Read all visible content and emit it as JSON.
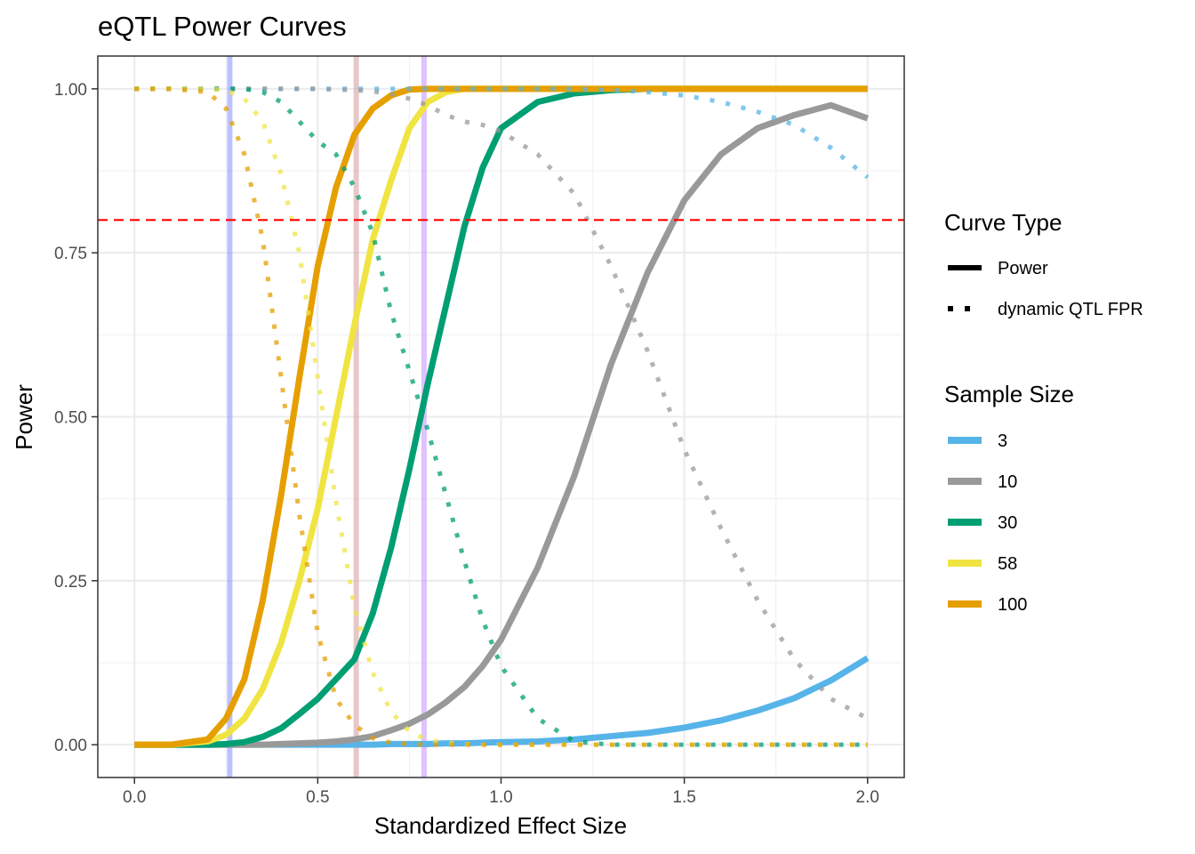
{
  "chart_data": {
    "type": "line",
    "title": "eQTL Power Curves",
    "xlabel": "Standardized Effect Size",
    "ylabel": "Power",
    "xlim": [
      -0.1,
      2.1
    ],
    "ylim": [
      -0.05,
      1.05
    ],
    "x_ticks": [
      0.0,
      0.5,
      1.0,
      1.5,
      2.0
    ],
    "x_tick_labels": [
      "0.0",
      "0.5",
      "1.0",
      "1.5",
      "2.0"
    ],
    "y_ticks": [
      0.0,
      0.25,
      0.5,
      0.75,
      1.0
    ],
    "y_tick_labels": [
      "0.00",
      "0.25",
      "0.50",
      "0.75",
      "1.00"
    ],
    "grid": true,
    "legend_position": "right",
    "x": [
      0.0,
      0.1,
      0.2,
      0.25,
      0.3,
      0.35,
      0.4,
      0.45,
      0.5,
      0.55,
      0.6,
      0.65,
      0.7,
      0.75,
      0.8,
      0.85,
      0.9,
      0.95,
      1.0,
      1.1,
      1.2,
      1.3,
      1.4,
      1.5,
      1.6,
      1.7,
      1.8,
      1.9,
      2.0
    ],
    "legends": [
      {
        "title": "Curve Type",
        "entries": [
          {
            "label": "Power",
            "linetype": "solid"
          },
          {
            "label": "dynamic QTL FPR",
            "linetype": "dotted"
          }
        ]
      },
      {
        "title": "Sample Size",
        "entries": [
          {
            "label": "3",
            "color": "#56B4E9"
          },
          {
            "label": "10",
            "color": "#999999"
          },
          {
            "label": "30",
            "color": "#009E73"
          },
          {
            "label": "58",
            "color": "#F0E442"
          },
          {
            "label": "100",
            "color": "#E69F00"
          }
        ]
      }
    ],
    "series": [
      {
        "name": "3",
        "curve": "Power",
        "color": "#56B4E9",
        "values": [
          0.0,
          0.0,
          0.0,
          0.0,
          0.0,
          0.0,
          0.0,
          0.0,
          0.0,
          0.0,
          0.0,
          0.0,
          0.001,
          0.001,
          0.001,
          0.002,
          0.002,
          0.003,
          0.004,
          0.005,
          0.008,
          0.013,
          0.018,
          0.026,
          0.037,
          0.052,
          0.071,
          0.098,
          0.132
        ]
      },
      {
        "name": "10",
        "curve": "Power",
        "color": "#999999",
        "values": [
          0.0,
          0.0,
          0.0,
          0.0,
          0.0,
          0.0,
          0.001,
          0.002,
          0.003,
          0.005,
          0.008,
          0.013,
          0.022,
          0.032,
          0.046,
          0.065,
          0.088,
          0.12,
          0.16,
          0.27,
          0.41,
          0.58,
          0.72,
          0.83,
          0.9,
          0.94,
          0.96,
          0.975,
          0.955
        ]
      },
      {
        "name": "30",
        "curve": "Power",
        "color": "#009E73",
        "values": [
          0.0,
          0.0,
          0.0,
          0.001,
          0.004,
          0.012,
          0.025,
          0.047,
          0.07,
          0.1,
          0.13,
          0.2,
          0.3,
          0.42,
          0.55,
          0.67,
          0.79,
          0.88,
          0.94,
          0.98,
          0.993,
          0.998,
          1.0,
          1.0,
          1.0,
          1.0,
          1.0,
          1.0,
          1.0
        ]
      },
      {
        "name": "58",
        "curve": "Power",
        "color": "#F0E442",
        "values": [
          0.0,
          0.0,
          0.005,
          0.015,
          0.04,
          0.085,
          0.155,
          0.25,
          0.36,
          0.5,
          0.64,
          0.77,
          0.86,
          0.94,
          0.98,
          0.995,
          1.0,
          1.0,
          1.0,
          1.0,
          1.0,
          1.0,
          1.0,
          1.0,
          1.0,
          1.0,
          1.0,
          1.0,
          1.0
        ]
      },
      {
        "name": "100",
        "curve": "Power",
        "color": "#E69F00",
        "values": [
          0.0,
          0.0,
          0.008,
          0.04,
          0.1,
          0.22,
          0.38,
          0.56,
          0.73,
          0.85,
          0.93,
          0.97,
          0.99,
          0.999,
          1.0,
          1.0,
          1.0,
          1.0,
          1.0,
          1.0,
          1.0,
          1.0,
          1.0,
          1.0,
          1.0,
          1.0,
          1.0,
          1.0,
          1.0
        ]
      },
      {
        "name": "3",
        "curve": "dynamic QTL FPR",
        "color": "#56B4E9",
        "values": [
          1.0,
          1.0,
          1.0,
          1.0,
          1.0,
          1.0,
          1.0,
          1.0,
          1.0,
          1.0,
          1.0,
          1.0,
          1.0,
          1.0,
          1.0,
          1.0,
          1.0,
          1.0,
          1.0,
          1.0,
          1.0,
          0.998,
          0.995,
          0.99,
          0.98,
          0.965,
          0.945,
          0.91,
          0.865
        ]
      },
      {
        "name": "10",
        "curve": "dynamic QTL FPR",
        "color": "#999999",
        "values": [
          1.0,
          1.0,
          1.0,
          1.0,
          1.0,
          1.0,
          1.0,
          1.0,
          1.0,
          0.999,
          0.998,
          0.996,
          0.992,
          0.985,
          0.975,
          0.96,
          0.95,
          0.945,
          0.935,
          0.9,
          0.84,
          0.73,
          0.6,
          0.45,
          0.33,
          0.22,
          0.13,
          0.07,
          0.04
        ]
      },
      {
        "name": "30",
        "curve": "dynamic QTL FPR",
        "color": "#009E73",
        "values": [
          1.0,
          1.0,
          1.0,
          1.0,
          1.0,
          0.995,
          0.98,
          0.95,
          0.92,
          0.9,
          0.85,
          0.78,
          0.66,
          0.57,
          0.48,
          0.38,
          0.28,
          0.19,
          0.12,
          0.04,
          0.005,
          0.0,
          0.0,
          0.0,
          0.0,
          0.0,
          0.0,
          0.0,
          0.0
        ]
      },
      {
        "name": "58",
        "curve": "dynamic QTL FPR",
        "color": "#F0E442",
        "values": [
          1.0,
          1.0,
          1.0,
          0.998,
          0.985,
          0.95,
          0.87,
          0.75,
          0.56,
          0.37,
          0.21,
          0.11,
          0.05,
          0.02,
          0.007,
          0.003,
          0.001,
          0.0,
          0.0,
          0.0,
          0.0,
          0.0,
          0.0,
          0.0,
          0.0,
          0.0,
          0.0,
          0.0,
          0.0
        ]
      },
      {
        "name": "100",
        "curve": "dynamic QTL FPR",
        "color": "#E69F00",
        "values": [
          1.0,
          1.0,
          0.995,
          0.97,
          0.9,
          0.77,
          0.56,
          0.35,
          0.17,
          0.07,
          0.03,
          0.01,
          0.003,
          0.001,
          0.0,
          0.0,
          0.0,
          0.0,
          0.0,
          0.0,
          0.0,
          0.0,
          0.0,
          0.0,
          0.0,
          0.0,
          0.0,
          0.0,
          0.0
        ]
      }
    ],
    "reference_lines": [
      {
        "orientation": "horizontal",
        "value": 0.8,
        "color": "#FF0000",
        "style": "dashed"
      },
      {
        "orientation": "vertical",
        "value": 0.26,
        "color": "#8F97FF"
      },
      {
        "orientation": "vertical",
        "value": 0.605,
        "color": "#D7A2A2"
      },
      {
        "orientation": "vertical",
        "value": 0.79,
        "color": "#C99BFF"
      }
    ]
  }
}
